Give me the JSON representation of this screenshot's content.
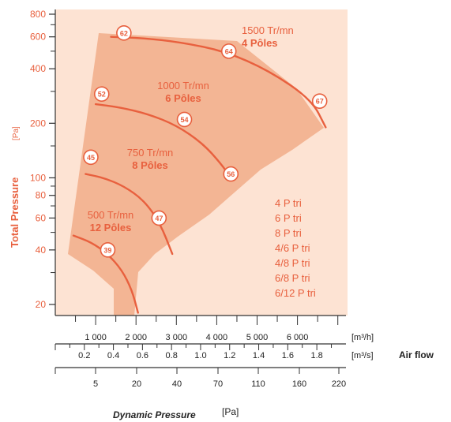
{
  "chart_data": {
    "type": "line",
    "ylabel": "Total Pressure",
    "yunit": "[Pa]",
    "y_scale": "log",
    "y_ticks": [
      800,
      600,
      400,
      200,
      100,
      80,
      60,
      40,
      20
    ],
    "x_axes": [
      {
        "ticks": [
          "1 000",
          "2 000",
          "3 000",
          "4 000",
          "5 000",
          "6 000"
        ],
        "unit": "[m³/h]"
      },
      {
        "ticks": [
          "0.2",
          "0.4",
          "0.6",
          "0.8",
          "1.0",
          "1.2",
          "1.4",
          "1.6",
          "1.8"
        ],
        "unit": "[m³/s]",
        "label": "Air flow"
      },
      {
        "ticks": [
          "5",
          "20",
          "40",
          "70",
          "110",
          "160",
          "220"
        ],
        "title": "Dynamic Pressure",
        "unit": "[Pa]"
      }
    ],
    "series": [
      {
        "name": "1500 Tr/mn 4 Pôles",
        "label_lines": [
          "1500 Tr/mn",
          "4 Pôles"
        ],
        "x": [
          1380,
          2200,
          3100,
          4200,
          5300,
          6350,
          6700
        ],
        "y": [
          600,
          590,
          560,
          500,
          390,
          270,
          190
        ]
      },
      {
        "name": "1000 Tr/mn 6 Pôles",
        "label_lines": [
          "1000 Tr/mn",
          "6 Pôles"
        ],
        "x": [
          1000,
          1600,
          2300,
          3000,
          3650,
          4100,
          4350
        ],
        "y": [
          255,
          245,
          225,
          195,
          155,
          120,
          100
        ]
      },
      {
        "name": "750 Tr/mn 8 Pôles",
        "label_lines": [
          "750 Tr/mn",
          "8 Pôles"
        ],
        "x": [
          750,
          1200,
          1700,
          2200,
          2600,
          2900
        ],
        "y": [
          105,
          100,
          90,
          75,
          56,
          38
        ]
      },
      {
        "name": "500 Tr/mn 12 Pôles",
        "label_lines": [
          "500 Tr/mn",
          "12 Pôles"
        ],
        "x": [
          450,
          900,
          1300,
          1650,
          1900,
          2050
        ],
        "y": [
          48,
          44,
          38,
          31,
          24,
          18
        ]
      }
    ],
    "efficiency_markers": [
      {
        "label": "62",
        "x": 1700,
        "y": 630
      },
      {
        "label": "64",
        "x": 4300,
        "y": 500
      },
      {
        "label": "67",
        "x": 6550,
        "y": 265
      },
      {
        "label": "52",
        "x": 1150,
        "y": 290
      },
      {
        "label": "54",
        "x": 3200,
        "y": 210
      },
      {
        "label": "56",
        "x": 4350,
        "y": 105
      },
      {
        "label": "45",
        "x": 880,
        "y": 130
      },
      {
        "label": "47",
        "x": 2570,
        "y": 60
      },
      {
        "label": "39",
        "x": 1300,
        "y": 40
      }
    ],
    "motor_list": [
      "4 P tri",
      "6 P tri",
      "8 P tri",
      "4/6 P tri",
      "4/8 P tri",
      "6/8 P tri",
      "6/12 P tri"
    ],
    "colors": {
      "background": "#fde3d3",
      "region": "#f3b594",
      "curve": "#e8603e",
      "text": "#e8603e",
      "axis": "#333333"
    },
    "grid": false
  }
}
